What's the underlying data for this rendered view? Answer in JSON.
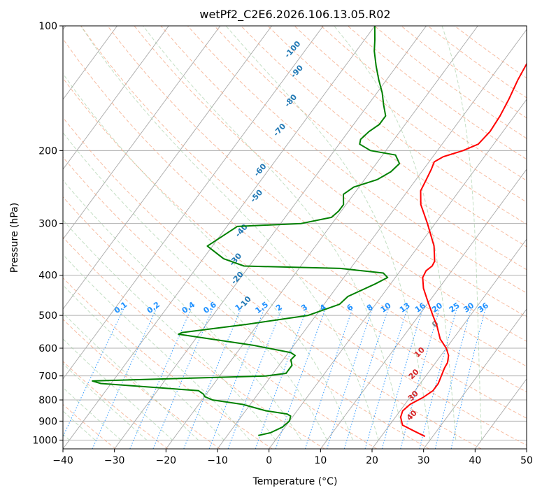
{
  "chart_data": {
    "type": "line",
    "title": "wetPf2_C2E6.2026.106.13.05.R02",
    "xlabel": "Temperature (°C)",
    "ylabel": "Pressure (hPa)",
    "xlim": [
      -40,
      50
    ],
    "ylim": [
      1050,
      100
    ],
    "y_log_scale": true,
    "skew": true,
    "grid": true,
    "x_ticks": [
      -40,
      -30,
      -20,
      -10,
      0,
      10,
      20,
      30,
      40,
      50
    ],
    "y_ticks": [
      100,
      200,
      300,
      400,
      500,
      600,
      700,
      800,
      900,
      1000
    ],
    "series": [
      {
        "color": "#ff0000",
        "points": [
          [
            28.5,
            980
          ],
          [
            25.5,
            950
          ],
          [
            22.5,
            920
          ],
          [
            21.0,
            880
          ],
          [
            20.5,
            850
          ],
          [
            21.0,
            820
          ],
          [
            22.5,
            790
          ],
          [
            23.5,
            760
          ],
          [
            23.5,
            730
          ],
          [
            23.0,
            700
          ],
          [
            22.5,
            670
          ],
          [
            22.3,
            650
          ],
          [
            21.5,
            625
          ],
          [
            20.0,
            600
          ],
          [
            17.5,
            570
          ],
          [
            15.0,
            530
          ],
          [
            12.7,
            500
          ],
          [
            9.5,
            460
          ],
          [
            7.0,
            430
          ],
          [
            5.3,
            405
          ],
          [
            5.0,
            390
          ],
          [
            5.5,
            380
          ],
          [
            5.3,
            370
          ],
          [
            3.0,
            340
          ],
          [
            -1.5,
            300
          ],
          [
            -5.5,
            270
          ],
          [
            -7.5,
            250
          ],
          [
            -8.0,
            235
          ],
          [
            -8.5,
            222
          ],
          [
            -9.0,
            213
          ],
          [
            -8.0,
            207
          ],
          [
            -5.0,
            200
          ],
          [
            -3.0,
            193
          ],
          [
            -2.5,
            180
          ],
          [
            -2.8,
            165
          ],
          [
            -3.5,
            150
          ],
          [
            -4.5,
            135
          ],
          [
            -5.0,
            125
          ],
          [
            -5.5,
            115
          ],
          [
            -7.3,
            108
          ],
          [
            -8.5,
            102
          ],
          [
            -9.5,
            100
          ]
        ]
      },
      {
        "color": "#008000",
        "points": [
          [
            -4.0,
            975
          ],
          [
            -2.0,
            960
          ],
          [
            -0.5,
            930
          ],
          [
            0.0,
            900
          ],
          [
            -0.5,
            875
          ],
          [
            -1.5,
            865
          ],
          [
            -6.0,
            850
          ],
          [
            -11.5,
            820
          ],
          [
            -18.0,
            800
          ],
          [
            -20.0,
            785
          ],
          [
            -20.5,
            775
          ],
          [
            -22.0,
            760
          ],
          [
            -42.0,
            730
          ],
          [
            -44.0,
            720
          ],
          [
            -11.0,
            700
          ],
          [
            -7.5,
            690
          ],
          [
            -7.5,
            660
          ],
          [
            -8.5,
            640
          ],
          [
            -8.3,
            625
          ],
          [
            -9.5,
            615
          ],
          [
            -18.0,
            590
          ],
          [
            -34.0,
            555
          ],
          [
            -33.5,
            550
          ],
          [
            -22.0,
            525
          ],
          [
            -11.5,
            500
          ],
          [
            -7.0,
            470
          ],
          [
            -6.5,
            450
          ],
          [
            -3.0,
            420
          ],
          [
            -1.5,
            405
          ],
          [
            -3.0,
            395
          ],
          [
            -12.0,
            385
          ],
          [
            -31.0,
            380
          ],
          [
            -36.0,
            365
          ],
          [
            -41.0,
            340
          ],
          [
            -38.0,
            305
          ],
          [
            -26.0,
            300
          ],
          [
            -21.0,
            290
          ],
          [
            -20.5,
            280
          ],
          [
            -20.5,
            270
          ],
          [
            -22.0,
            255
          ],
          [
            -21.0,
            245
          ],
          [
            -17.5,
            235
          ],
          [
            -16.0,
            225
          ],
          [
            -15.5,
            215
          ],
          [
            -17.5,
            205
          ],
          [
            -23.0,
            200
          ],
          [
            -26.0,
            193
          ],
          [
            -26.5,
            188
          ],
          [
            -26.0,
            180
          ],
          [
            -25.0,
            173
          ],
          [
            -25.0,
            165
          ],
          [
            -27.0,
            155
          ],
          [
            -29.0,
            145
          ],
          [
            -31.5,
            135
          ],
          [
            -34.0,
            125
          ],
          [
            -36.5,
            115
          ],
          [
            -38.0,
            108
          ],
          [
            -40.0,
            100
          ]
        ]
      }
    ],
    "dry_adiabat_labels": [
      "-100",
      "-90",
      "-80",
      "-70",
      "-60",
      "-50",
      "-40",
      "-30",
      "-20",
      "-10"
    ],
    "mixing_ratio_labels": [
      "0.1",
      "0.2",
      "0.4",
      "0.6",
      "1",
      "1.5",
      "2",
      "3",
      "4",
      "6",
      "8",
      "10",
      "13",
      "16",
      "20",
      "25",
      "30",
      "36"
    ],
    "moist_adiabat_labels": [
      "10",
      "20",
      "30",
      "40"
    ],
    "zero_label": "0"
  }
}
